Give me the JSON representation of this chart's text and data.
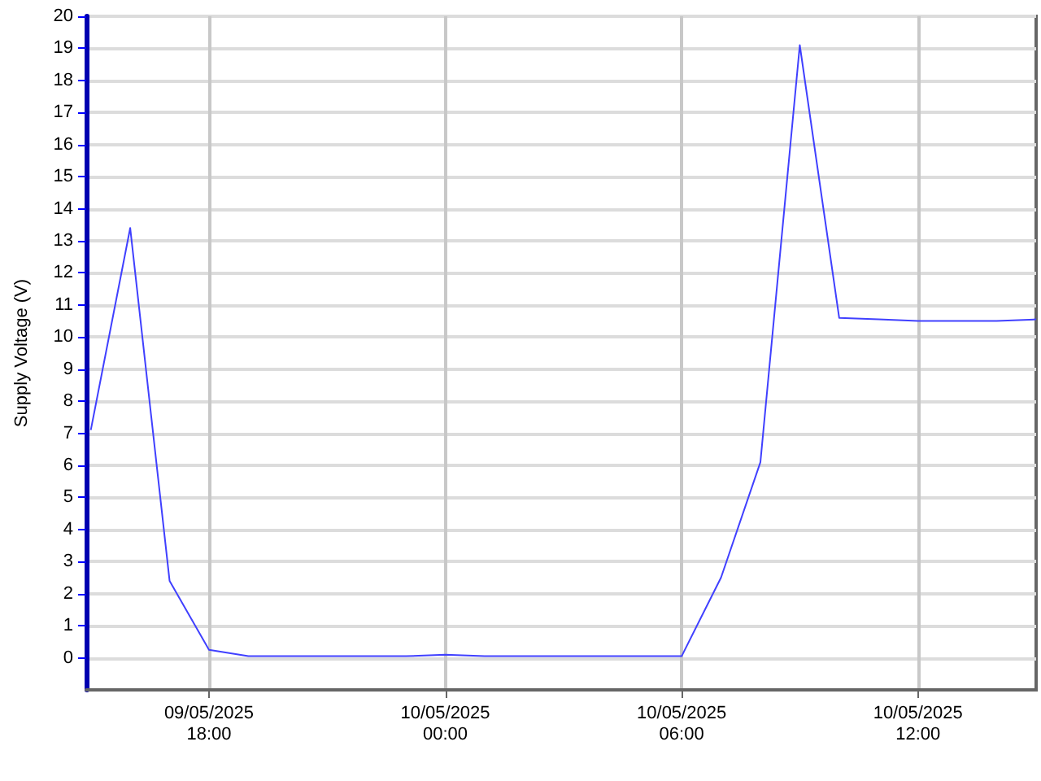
{
  "chart_data": {
    "type": "line",
    "ylabel": "Supply Voltage (V)",
    "x": [
      "2025-05-09T15:00",
      "2025-05-09T16:00",
      "2025-05-09T17:00",
      "2025-05-09T18:00",
      "2025-05-09T19:00",
      "2025-05-09T20:00",
      "2025-05-09T21:00",
      "2025-05-09T22:00",
      "2025-05-09T23:00",
      "2025-05-10T00:00",
      "2025-05-10T01:00",
      "2025-05-10T02:00",
      "2025-05-10T03:00",
      "2025-05-10T04:00",
      "2025-05-10T05:00",
      "2025-05-10T06:00",
      "2025-05-10T07:00",
      "2025-05-10T08:00",
      "2025-05-10T09:00",
      "2025-05-10T10:00",
      "2025-05-10T11:00",
      "2025-05-10T12:00",
      "2025-05-10T13:00",
      "2025-05-10T14:00",
      "2025-05-10T15:00"
    ],
    "series": [
      {
        "color": "#4040ff",
        "values": [
          7.1,
          13.4,
          2.4,
          0.25,
          0.05,
          0.05,
          0.05,
          0.05,
          0.05,
          0.1,
          0.05,
          0.05,
          0.05,
          0.05,
          0.05,
          0.05,
          2.5,
          6.1,
          19.1,
          10.6,
          10.55,
          10.5,
          10.5,
          10.5,
          10.55
        ]
      }
    ],
    "xlim": [
      "2025-05-09T14:53",
      "2025-05-10T15:00"
    ],
    "xticks": [
      {
        "value": "2025-05-09T18:00",
        "label": "09/05/2025\n18:00"
      },
      {
        "value": "2025-05-10T00:00",
        "label": "10/05/2025\n00:00"
      },
      {
        "value": "2025-05-10T06:00",
        "label": "10/05/2025\n06:00"
      },
      {
        "value": "2025-05-10T12:00",
        "label": "10/05/2025\n12:00"
      }
    ],
    "ylim": [
      -1,
      20
    ],
    "yticks": [
      0,
      1,
      2,
      3,
      4,
      5,
      6,
      7,
      8,
      9,
      10,
      11,
      12,
      13,
      14,
      15,
      16,
      17,
      18,
      19,
      20
    ],
    "grid": true,
    "marker": "none",
    "line_style": "solid"
  }
}
